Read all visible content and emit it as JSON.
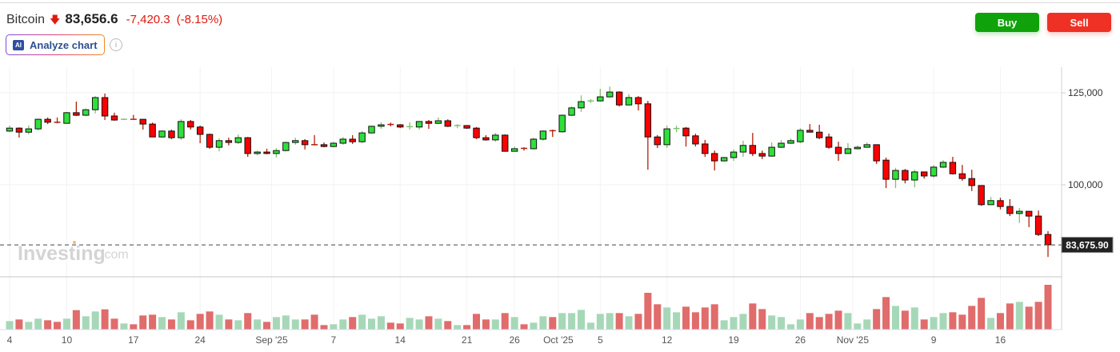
{
  "header": {
    "instrument": "Bitcoin",
    "direction_icon": "arrow-down-icon",
    "price": "83,656.6",
    "change": "-7,420.3",
    "change_pct": "(-8.15%)",
    "analyze_badge": "AI",
    "analyze_label": "Analyze chart",
    "info_icon": "i"
  },
  "actions": {
    "buy": "Buy",
    "sell": "Sell"
  },
  "colors": {
    "up_body": "#2fe03a",
    "down_body": "#ff0000",
    "up_volume": "#a6d8b8",
    "down_volume": "#e06c6c",
    "buy": "#10a20a",
    "sell": "#ee3124"
  },
  "watermark": "Investing.com",
  "chart_data": {
    "type": "candlestick",
    "price_unit": "USD thousands",
    "y_ticks": [
      {
        "value": 125,
        "label": "125,000"
      },
      {
        "value": 100,
        "label": "100,000"
      }
    ],
    "last_price_label": "83,675.90",
    "last_price": 83.6759,
    "x_ticks": [
      {
        "index": 0,
        "label": "4"
      },
      {
        "index": 6,
        "label": "10"
      },
      {
        "index": 13,
        "label": "17"
      },
      {
        "index": 20,
        "label": "24"
      },
      {
        "index": 27.5,
        "label": "Sep '25"
      },
      {
        "index": 34,
        "label": "7"
      },
      {
        "index": 41,
        "label": "14"
      },
      {
        "index": 48,
        "label": "21"
      },
      {
        "index": 53,
        "label": "26"
      },
      {
        "index": 57.6,
        "label": "Oct '25"
      },
      {
        "index": 62,
        "label": "5"
      },
      {
        "index": 69,
        "label": "12"
      },
      {
        "index": 76,
        "label": "19"
      },
      {
        "index": 83,
        "label": "26"
      },
      {
        "index": 88.5,
        "label": "Nov '25"
      },
      {
        "index": 97,
        "label": "9"
      },
      {
        "index": 104,
        "label": "16"
      }
    ],
    "ohlc": [
      [
        114.6,
        116.1,
        114.3,
        115.4
      ],
      [
        115.4,
        115.6,
        112.8,
        114.3
      ],
      [
        114.3,
        116.1,
        113.7,
        115.2
      ],
      [
        115.2,
        118.0,
        114.8,
        117.8
      ],
      [
        117.8,
        118.3,
        116.5,
        117.0
      ],
      [
        117.0,
        118.3,
        116.7,
        116.8
      ],
      [
        116.7,
        119.8,
        116.7,
        119.6
      ],
      [
        119.6,
        122.6,
        118.7,
        118.9
      ],
      [
        118.9,
        120.7,
        118.7,
        120.4
      ],
      [
        120.4,
        124.1,
        119.4,
        123.7
      ],
      [
        123.7,
        124.8,
        117.6,
        118.7
      ],
      [
        118.7,
        119.6,
        117.4,
        117.6
      ],
      [
        117.6,
        118.0,
        117.6,
        117.8
      ],
      [
        117.8,
        119.0,
        117.7,
        117.7
      ],
      [
        117.8,
        117.8,
        115.0,
        116.5
      ],
      [
        116.5,
        116.9,
        113.0,
        113.0
      ],
      [
        113.0,
        114.8,
        112.8,
        114.6
      ],
      [
        114.6,
        115.0,
        112.4,
        112.8
      ],
      [
        112.8,
        117.8,
        112.2,
        117.2
      ],
      [
        117.2,
        117.6,
        115.0,
        115.7
      ],
      [
        115.7,
        116.1,
        111.3,
        113.7
      ],
      [
        113.7,
        113.9,
        109.8,
        110.2
      ],
      [
        110.2,
        112.6,
        109.1,
        112.0
      ],
      [
        112.0,
        112.8,
        110.7,
        111.5
      ],
      [
        111.5,
        113.7,
        111.1,
        112.8
      ],
      [
        112.8,
        113.0,
        107.6,
        108.5
      ],
      [
        108.5,
        109.3,
        108.0,
        108.9
      ],
      [
        108.9,
        109.8,
        108.3,
        108.5
      ],
      [
        108.5,
        110.0,
        107.4,
        109.3
      ],
      [
        109.3,
        111.7,
        109.1,
        111.5
      ],
      [
        111.5,
        112.8,
        110.9,
        112.0
      ],
      [
        112.0,
        112.4,
        109.6,
        110.9
      ],
      [
        110.9,
        113.5,
        110.7,
        110.7
      ],
      [
        110.9,
        111.5,
        110.2,
        110.4
      ],
      [
        110.4,
        111.7,
        110.2,
        111.3
      ],
      [
        111.3,
        113.0,
        110.9,
        112.4
      ],
      [
        112.4,
        113.5,
        111.1,
        111.7
      ],
      [
        111.7,
        114.6,
        111.3,
        114.1
      ],
      [
        114.1,
        116.1,
        113.9,
        115.9
      ],
      [
        115.9,
        117.0,
        115.2,
        116.3
      ],
      [
        116.4,
        116.9,
        115.9,
        116.3
      ],
      [
        116.3,
        116.5,
        115.4,
        115.7
      ],
      [
        115.6,
        117.0,
        115.0,
        115.8
      ],
      [
        115.7,
        117.2,
        115.0,
        117.2
      ],
      [
        117.2,
        117.6,
        115.2,
        116.7
      ],
      [
        116.7,
        118.3,
        116.5,
        117.4
      ],
      [
        117.4,
        117.8,
        115.7,
        115.9
      ],
      [
        116.0,
        116.5,
        115.4,
        116.1
      ],
      [
        116.1,
        116.1,
        115.2,
        115.4
      ],
      [
        115.4,
        115.7,
        112.4,
        112.8
      ],
      [
        112.8,
        113.5,
        112.0,
        112.2
      ],
      [
        112.2,
        114.1,
        111.7,
        113.5
      ],
      [
        113.5,
        113.7,
        109.1,
        109.1
      ],
      [
        109.1,
        110.4,
        109.1,
        109.8
      ],
      [
        109.9,
        110.2,
        109.3,
        109.8
      ],
      [
        109.8,
        112.8,
        109.6,
        112.4
      ],
      [
        112.4,
        114.8,
        112.0,
        114.6
      ],
      [
        114.7,
        115.0,
        113.0,
        114.6
      ],
      [
        114.4,
        119.1,
        114.2,
        118.9
      ],
      [
        118.9,
        121.3,
        118.7,
        120.9
      ],
      [
        120.9,
        124.3,
        119.8,
        122.6
      ],
      [
        122.7,
        123.3,
        122.2,
        122.8
      ],
      [
        122.8,
        126.1,
        122.6,
        123.9
      ],
      [
        123.9,
        126.7,
        123.7,
        125.2
      ],
      [
        125.2,
        125.4,
        121.3,
        121.7
      ],
      [
        121.7,
        124.6,
        121.7,
        123.7
      ],
      [
        123.7,
        124.1,
        120.2,
        122.0
      ],
      [
        122.0,
        122.8,
        104.1,
        113.0
      ],
      [
        113.0,
        113.5,
        110.0,
        110.9
      ],
      [
        110.9,
        116.1,
        110.0,
        115.2
      ],
      [
        115.1,
        116.1,
        114.3,
        115.3
      ],
      [
        115.4,
        115.7,
        110.4,
        113.3
      ],
      [
        113.3,
        113.9,
        110.4,
        111.1
      ],
      [
        111.1,
        112.2,
        107.6,
        108.5
      ],
      [
        108.5,
        109.3,
        103.9,
        106.5
      ],
      [
        106.5,
        107.6,
        106.3,
        107.4
      ],
      [
        107.4,
        109.6,
        106.5,
        108.9
      ],
      [
        108.9,
        112.0,
        107.6,
        110.7
      ],
      [
        110.7,
        114.1,
        107.8,
        108.5
      ],
      [
        108.5,
        109.3,
        107.0,
        107.8
      ],
      [
        107.8,
        111.5,
        107.6,
        110.2
      ],
      [
        110.2,
        112.2,
        110.0,
        111.3
      ],
      [
        111.3,
        112.6,
        111.1,
        112.0
      ],
      [
        111.7,
        115.4,
        111.3,
        114.8
      ],
      [
        114.8,
        116.5,
        114.3,
        114.3
      ],
      [
        114.3,
        116.3,
        112.4,
        112.8
      ],
      [
        113.0,
        113.9,
        109.8,
        110.2
      ],
      [
        110.2,
        111.7,
        106.5,
        108.5
      ],
      [
        108.5,
        111.3,
        108.5,
        109.8
      ],
      [
        109.8,
        110.7,
        109.6,
        110.2
      ],
      [
        110.2,
        111.5,
        110.2,
        110.9
      ],
      [
        110.9,
        110.9,
        105.7,
        106.5
      ],
      [
        106.7,
        107.4,
        99.1,
        101.5
      ],
      [
        101.5,
        104.6,
        99.1,
        103.9
      ],
      [
        103.9,
        104.3,
        100.4,
        101.3
      ],
      [
        101.3,
        104.1,
        99.3,
        103.5
      ],
      [
        103.5,
        103.5,
        101.7,
        102.4
      ],
      [
        102.4,
        105.4,
        101.9,
        104.8
      ],
      [
        104.8,
        106.7,
        104.6,
        106.1
      ],
      [
        106.1,
        107.6,
        102.8,
        103.0
      ],
      [
        103.0,
        105.4,
        101.1,
        101.7
      ],
      [
        101.7,
        104.1,
        98.3,
        99.8
      ],
      [
        99.8,
        99.8,
        94.3,
        94.6
      ],
      [
        94.6,
        96.7,
        94.6,
        95.7
      ],
      [
        95.7,
        96.5,
        93.3,
        94.1
      ],
      [
        94.1,
        96.1,
        91.5,
        92.2
      ],
      [
        92.2,
        93.7,
        89.6,
        92.8
      ],
      [
        92.8,
        92.8,
        88.5,
        91.5
      ],
      [
        91.5,
        93.0,
        86.1,
        86.5
      ],
      [
        86.5,
        87.4,
        80.4,
        83.7
      ]
    ],
    "volume_relative": [
      32,
      38,
      29,
      41,
      35,
      29,
      41,
      73,
      50,
      68,
      76,
      41,
      23,
      20,
      53,
      56,
      47,
      38,
      65,
      35,
      59,
      68,
      56,
      38,
      35,
      62,
      38,
      29,
      47,
      53,
      38,
      38,
      56,
      17,
      20,
      38,
      47,
      56,
      41,
      50,
      26,
      23,
      44,
      38,
      50,
      41,
      32,
      17,
      17,
      59,
      38,
      38,
      62,
      47,
      20,
      26,
      50,
      47,
      62,
      62,
      74,
      26,
      59,
      62,
      62,
      50,
      59,
      138,
      95,
      83,
      65,
      86,
      65,
      83,
      95,
      35,
      47,
      59,
      98,
      77,
      53,
      47,
      20,
      38,
      62,
      47,
      59,
      71,
      62,
      23,
      38,
      77,
      122,
      89,
      71,
      83,
      38,
      47,
      62,
      65,
      56,
      89,
      119,
      44,
      62,
      98,
      104,
      86,
      104,
      168
    ]
  }
}
